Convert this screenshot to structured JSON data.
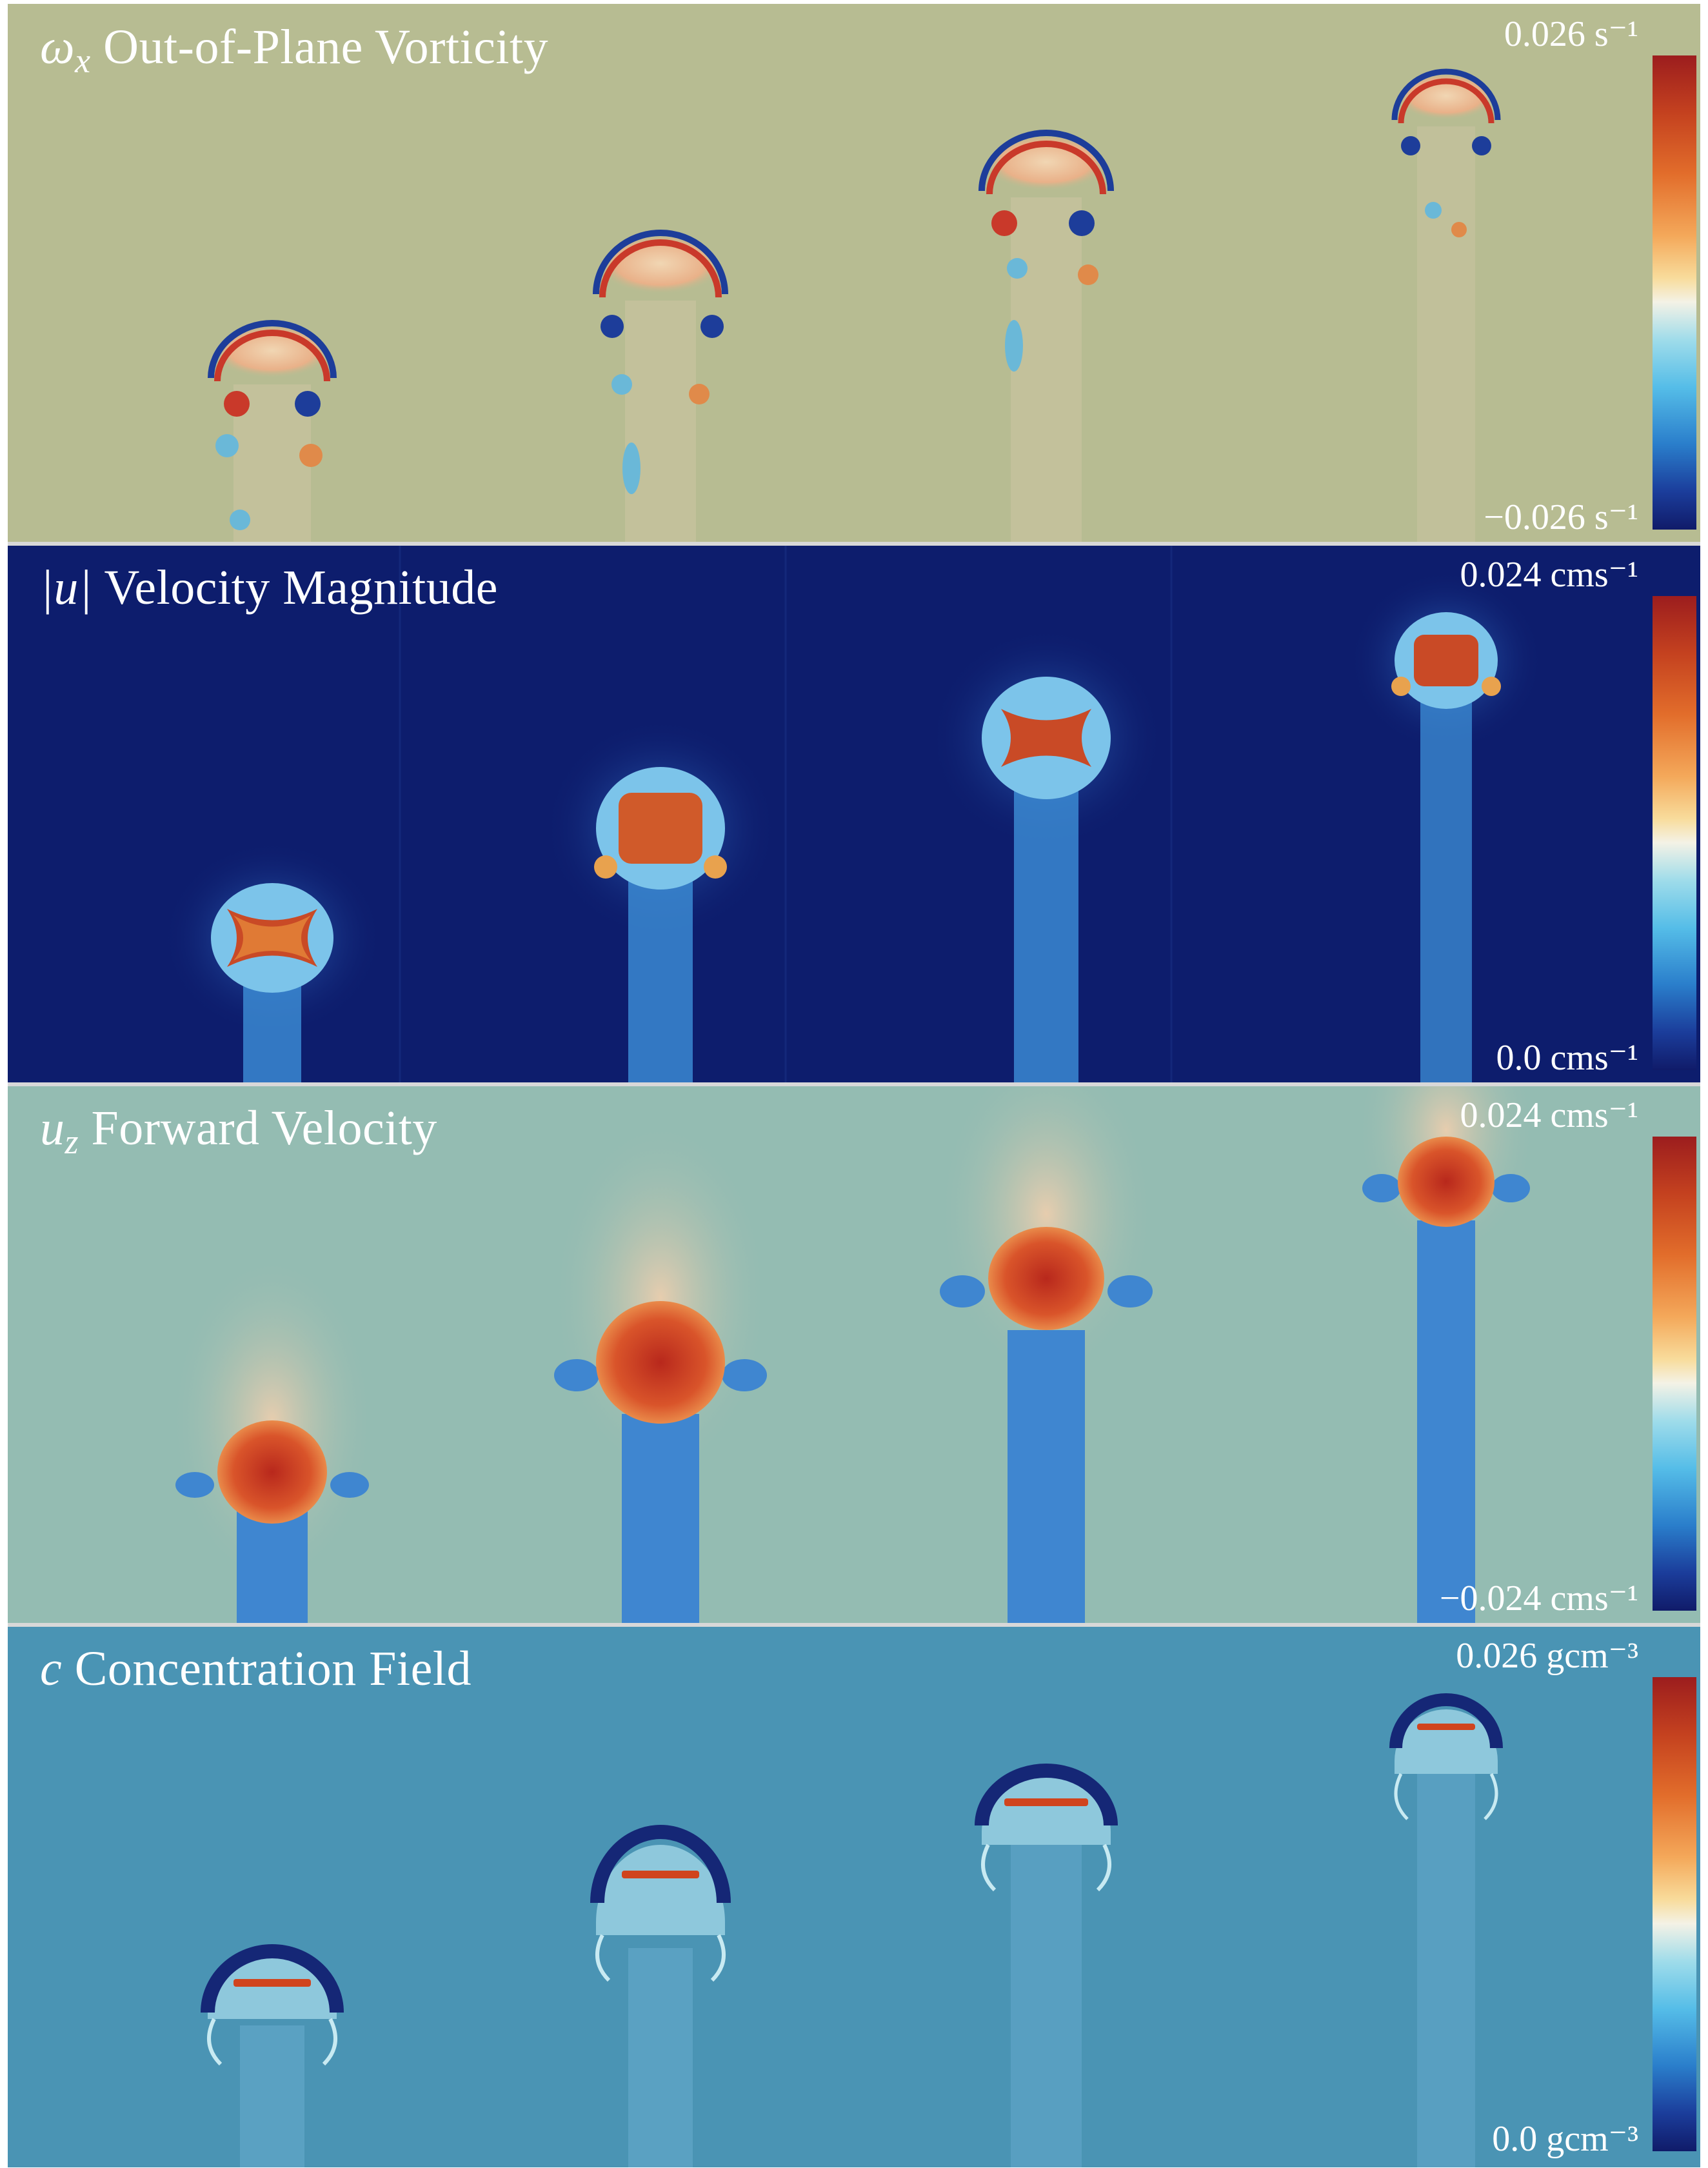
{
  "panels": [
    {
      "symbol": "ω",
      "subscript": "x",
      "title": "Out-of-Plane Vorticity",
      "max_label": "0.026 s⁻¹",
      "min_label": "−0.026 s⁻¹",
      "background": "#b7bc92"
    },
    {
      "symbol": "|u|",
      "subscript": "",
      "title": "Velocity Magnitude",
      "max_label": "0.024 cms⁻¹",
      "min_label": "0.0 cms⁻¹",
      "background": "#0d1d6d"
    },
    {
      "symbol": "u",
      "subscript": "z",
      "title": "Forward Velocity",
      "max_label": "0.024 cms⁻¹",
      "min_label": "−0.024 cms⁻¹",
      "background": "#94bcb2"
    },
    {
      "symbol": "c",
      "subscript": "",
      "title": "Concentration Field",
      "max_label": "0.026 gcm⁻³",
      "min_label": "0.0 gcm⁻³",
      "background": "#4a94b4"
    }
  ],
  "colorbar_colors": [
    "#9c1d1e",
    "#e26d2b",
    "#f8dc9c",
    "#f4f2e6",
    "#55bde8",
    "#101b69"
  ]
}
